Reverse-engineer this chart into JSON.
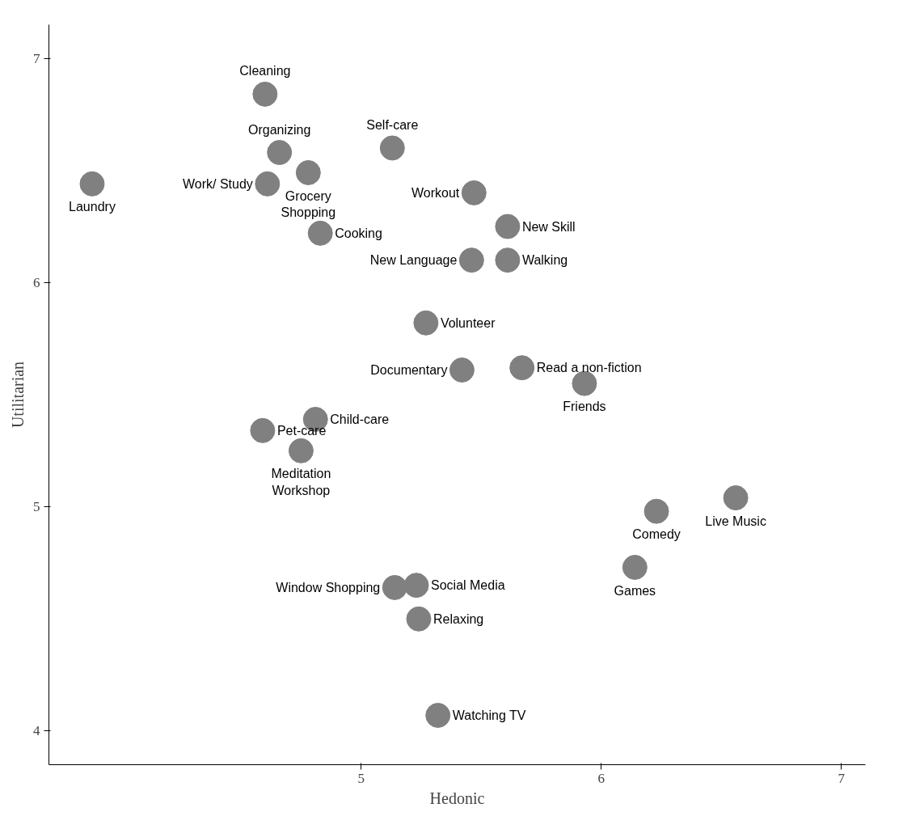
{
  "chart_data": {
    "type": "scatter",
    "xlabel": "Hedonic",
    "ylabel": "Utilitarian",
    "xlim": [
      3.7,
      7.1
    ],
    "ylim": [
      3.85,
      7.15
    ],
    "xticks": [
      5,
      6,
      7
    ],
    "yticks": [
      4,
      5,
      6,
      7
    ],
    "grid": false,
    "marker": "circle",
    "series": [
      {
        "color": "#808080",
        "x": [
          4.6,
          4.66,
          5.13,
          3.88,
          4.61,
          4.78,
          5.47,
          5.61,
          4.83,
          5.46,
          5.61,
          5.27,
          5.42,
          5.67,
          5.93,
          4.81,
          4.59,
          4.75,
          6.56,
          6.23,
          6.14,
          5.14,
          5.23,
          5.24,
          5.32
        ],
        "values": [
          6.84,
          6.58,
          6.6,
          6.44,
          6.44,
          6.49,
          6.4,
          6.25,
          6.22,
          6.1,
          6.1,
          5.82,
          5.61,
          5.62,
          5.55,
          5.39,
          5.34,
          5.25,
          5.04,
          4.98,
          4.73,
          4.64,
          4.65,
          4.5,
          4.07
        ]
      }
    ],
    "annotations": [
      {
        "text": "Cleaning",
        "x": 4.6,
        "y": 6.84
      },
      {
        "text": "Organizing",
        "x": 4.66,
        "y": 6.58
      },
      {
        "text": "Self-care",
        "x": 5.13,
        "y": 6.6
      },
      {
        "text": "Laundry",
        "x": 3.88,
        "y": 6.44
      },
      {
        "text": "Work/ Study",
        "x": 4.61,
        "y": 6.44
      },
      {
        "text": "Grocery\nShopping",
        "x": 4.78,
        "y": 6.49
      },
      {
        "text": "Workout",
        "x": 5.47,
        "y": 6.4
      },
      {
        "text": "New Skill",
        "x": 5.61,
        "y": 6.25
      },
      {
        "text": "Cooking",
        "x": 4.83,
        "y": 6.22
      },
      {
        "text": "New Language",
        "x": 5.46,
        "y": 6.1
      },
      {
        "text": "Walking",
        "x": 5.61,
        "y": 6.1
      },
      {
        "text": "Volunteer",
        "x": 5.27,
        "y": 5.82
      },
      {
        "text": "Documentary",
        "x": 5.42,
        "y": 5.61
      },
      {
        "text": "Read a non-fiction",
        "x": 5.67,
        "y": 5.62
      },
      {
        "text": "Friends",
        "x": 5.93,
        "y": 5.55
      },
      {
        "text": "Child-care",
        "x": 4.81,
        "y": 5.39
      },
      {
        "text": "Pet-care",
        "x": 4.59,
        "y": 5.34
      },
      {
        "text": "Meditation\nWorkshop",
        "x": 4.75,
        "y": 5.25
      },
      {
        "text": "Live Music",
        "x": 6.56,
        "y": 5.04
      },
      {
        "text": "Comedy",
        "x": 6.23,
        "y": 4.98
      },
      {
        "text": "Games",
        "x": 6.14,
        "y": 4.73
      },
      {
        "text": "Window Shopping",
        "x": 5.14,
        "y": 4.64
      },
      {
        "text": "Social Media",
        "x": 5.23,
        "y": 4.65
      },
      {
        "text": "Relaxing",
        "x": 5.24,
        "y": 4.5
      },
      {
        "text": "Watching TV",
        "x": 5.32,
        "y": 4.07
      }
    ]
  }
}
